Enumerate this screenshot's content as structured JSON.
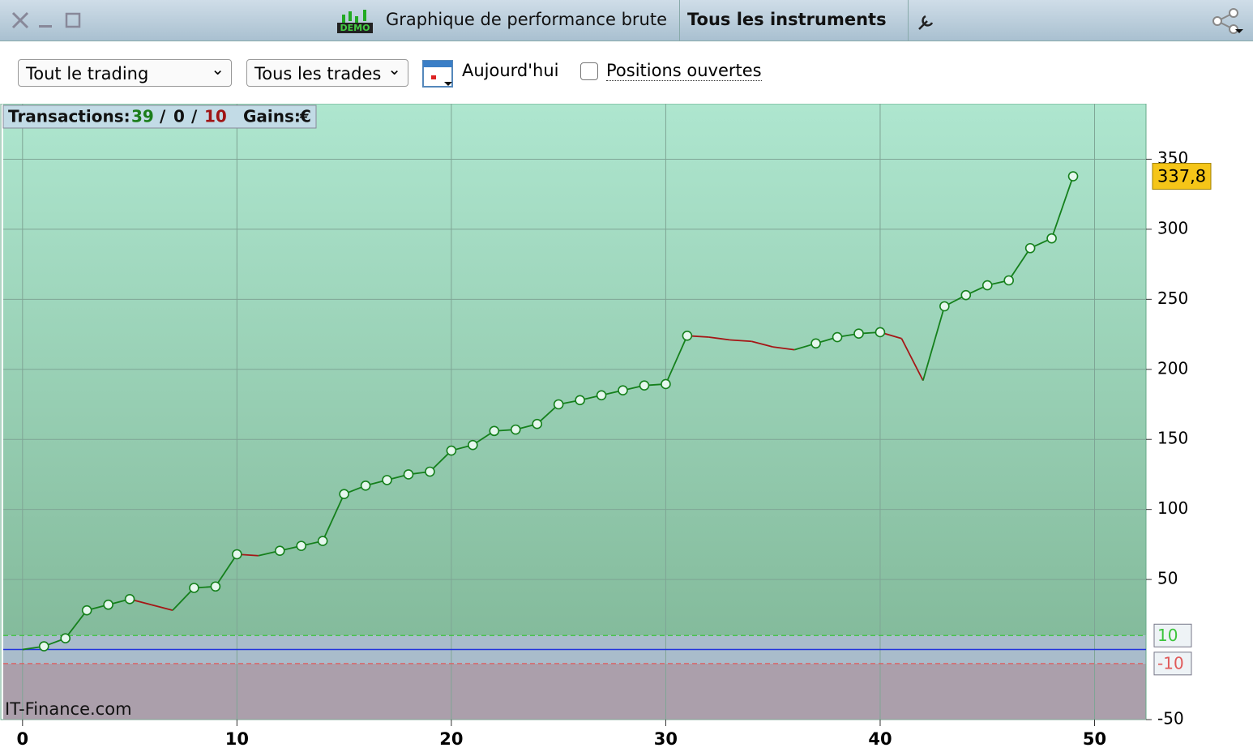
{
  "window": {
    "title": "Graphique de performance brute",
    "instrument": "Tous les instruments",
    "demo": "DEMO"
  },
  "toolbar": {
    "trading": "Tout le trading",
    "trades": "Tous les trades",
    "date": "Aujourd'hui",
    "checkbox": "Positions ouvertes"
  },
  "stats": {
    "label": "Transactions:",
    "wins": 39,
    "separator": "/",
    "neutral": 0,
    "losses": 10,
    "gains_label": "Gains:",
    "currency": "€"
  },
  "chart_data": {
    "type": "line",
    "watermark": "IT-Finance.com",
    "x": [
      0,
      1,
      2,
      3,
      4,
      5,
      6,
      7,
      8,
      9,
      10,
      11,
      12,
      13,
      14,
      15,
      16,
      17,
      18,
      19,
      20,
      21,
      22,
      23,
      24,
      25,
      26,
      27,
      28,
      29,
      30,
      31,
      32,
      33,
      34,
      35,
      36,
      37,
      38,
      39,
      40,
      41,
      42,
      43,
      44,
      45,
      46,
      47,
      48,
      49
    ],
    "values": [
      0,
      2.3,
      8,
      28,
      32,
      36,
      32,
      28,
      44,
      45,
      68,
      67,
      70.5,
      74,
      77.5,
      111,
      117,
      121,
      125,
      127,
      142,
      146,
      156,
      157,
      161,
      175,
      178,
      181.5,
      185,
      188.5,
      189.5,
      224,
      223,
      221,
      220,
      216,
      214,
      218.5,
      223,
      225.5,
      226.5,
      222,
      192,
      245,
      253,
      260,
      263.5,
      286.5,
      293.5,
      337.8
    ],
    "value_labels": [
      null,
      null,
      null,
      null,
      null,
      null,
      null,
      null,
      null,
      null,
      null,
      null,
      null,
      null,
      null,
      null,
      null,
      null,
      null,
      null,
      null,
      null,
      null,
      null,
      null,
      null,
      null,
      null,
      null,
      null,
      null,
      null,
      null,
      null,
      null,
      null,
      null,
      null,
      null,
      null,
      null,
      null,
      null,
      null,
      null,
      null,
      null,
      null,
      null,
      "337,8"
    ],
    "color": "#15801c",
    "down_color": "#a51616",
    "thresholds": [
      10,
      -10
    ],
    "threshold_colors": [
      "#3cc43c",
      "#e05a5a"
    ],
    "xlim": [
      -0.9,
      52.4
    ],
    "xticks": [
      0,
      10,
      20,
      30,
      40,
      50
    ],
    "ylim": [
      -50,
      389.6
    ],
    "yticks": [
      -50,
      50,
      100,
      150,
      200,
      250,
      300,
      350
    ],
    "grid": true
  }
}
